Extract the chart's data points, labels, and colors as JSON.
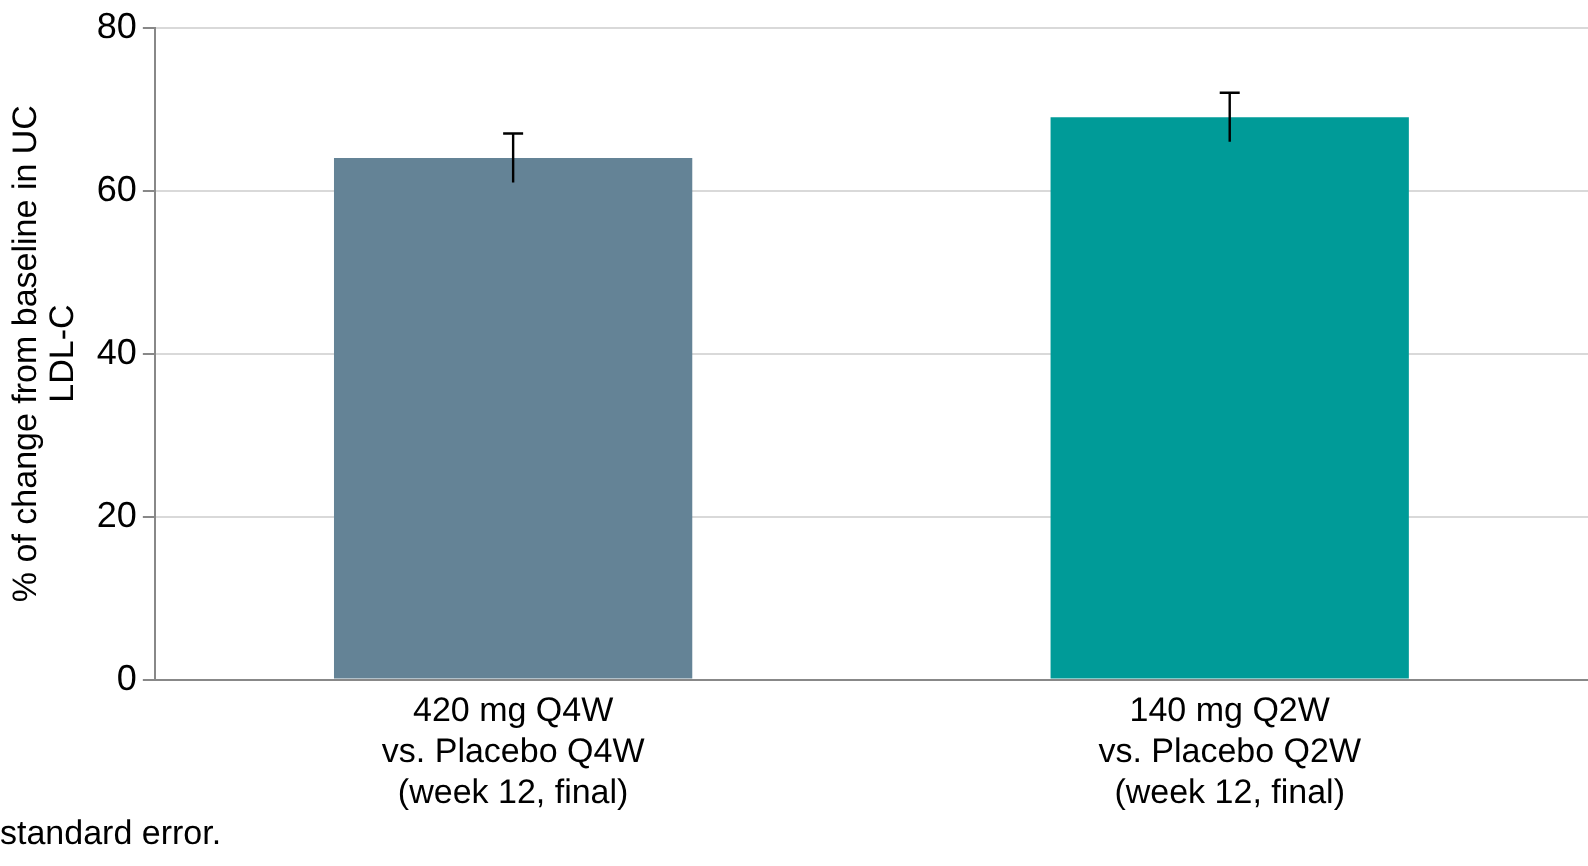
{
  "chart_data": {
    "type": "bar",
    "ylabel": "% of change from baseline in UC\nLDL-C",
    "categories": [
      "420 mg Q4W\nvs. Placebo Q4W\n(week 12, final)",
      "140 mg Q2W\nvs. Placebo Q2W\n(week 12, final)"
    ],
    "values": [
      64,
      69
    ],
    "colors": [
      "#648396",
      "#009b98"
    ],
    "errors": [
      3,
      3
    ],
    "ylim": [
      0,
      80
    ],
    "yticks": [
      0,
      20,
      40,
      60,
      80
    ],
    "grid": "y",
    "annotations": [
      "standard error."
    ]
  }
}
